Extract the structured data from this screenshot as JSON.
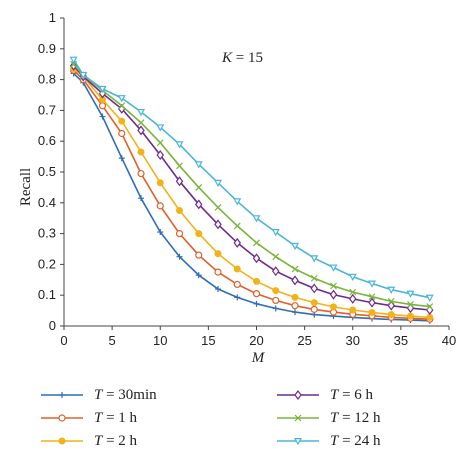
{
  "chart_data": {
    "type": "line",
    "annotation": "K = 15",
    "xlabel": "M",
    "ylabel": "Recall",
    "xlim": [
      0,
      40
    ],
    "ylim": [
      0,
      1
    ],
    "xticks": [
      0,
      5,
      10,
      15,
      20,
      25,
      30,
      35,
      40
    ],
    "yticks": [
      0,
      0.1,
      0.2,
      0.3,
      0.4,
      0.5,
      0.6,
      0.7,
      0.8,
      0.9,
      1
    ],
    "grid": false,
    "legend_position": "bottom",
    "x": [
      1,
      2,
      4,
      6,
      8,
      10,
      12,
      14,
      16,
      18,
      20,
      22,
      24,
      26,
      28,
      30,
      32,
      34,
      36,
      38
    ],
    "series": [
      {
        "name": "T = 30min",
        "color": "#2f6db5",
        "marker": "plus",
        "values": [
          0.82,
          0.79,
          0.68,
          0.545,
          0.415,
          0.305,
          0.225,
          0.165,
          0.12,
          0.093,
          0.072,
          0.057,
          0.045,
          0.037,
          0.032,
          0.028,
          0.024,
          0.021,
          0.019,
          0.017
        ]
      },
      {
        "name": "T = 1 h",
        "color": "#e0602a",
        "marker": "circle",
        "values": [
          0.83,
          0.8,
          0.715,
          0.625,
          0.495,
          0.39,
          0.3,
          0.23,
          0.175,
          0.135,
          0.105,
          0.083,
          0.066,
          0.054,
          0.045,
          0.038,
          0.033,
          0.028,
          0.025,
          0.022
        ]
      },
      {
        "name": "T = 2 h",
        "color": "#f2b21b",
        "marker": "dot",
        "values": [
          0.835,
          0.81,
          0.735,
          0.665,
          0.565,
          0.465,
          0.375,
          0.3,
          0.235,
          0.185,
          0.145,
          0.115,
          0.093,
          0.076,
          0.062,
          0.052,
          0.044,
          0.037,
          0.032,
          0.028
        ]
      },
      {
        "name": "T = 6 h",
        "color": "#6d2a8f",
        "marker": "diamond",
        "values": [
          0.845,
          0.81,
          0.755,
          0.705,
          0.635,
          0.555,
          0.47,
          0.395,
          0.33,
          0.27,
          0.22,
          0.178,
          0.148,
          0.122,
          0.102,
          0.088,
          0.076,
          0.066,
          0.058,
          0.052
        ]
      },
      {
        "name": "T = 12 h",
        "color": "#79b53a",
        "marker": "x",
        "values": [
          0.85,
          0.815,
          0.765,
          0.715,
          0.66,
          0.595,
          0.52,
          0.45,
          0.385,
          0.325,
          0.27,
          0.225,
          0.185,
          0.155,
          0.13,
          0.11,
          0.095,
          0.08,
          0.07,
          0.063
        ]
      },
      {
        "name": "T = 24 h",
        "color": "#4ab5dc",
        "marker": "triangle",
        "values": [
          0.865,
          0.815,
          0.77,
          0.74,
          0.695,
          0.645,
          0.59,
          0.525,
          0.465,
          0.405,
          0.35,
          0.305,
          0.26,
          0.22,
          0.19,
          0.16,
          0.138,
          0.118,
          0.105,
          0.092
        ]
      }
    ]
  }
}
